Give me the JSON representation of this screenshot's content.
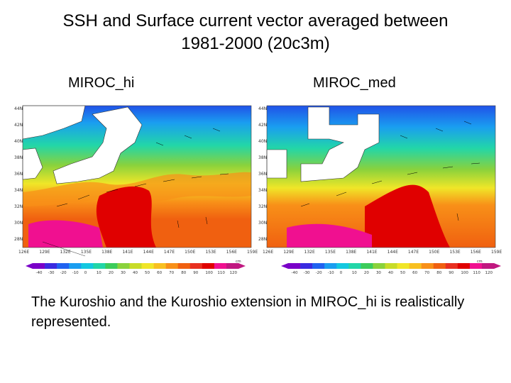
{
  "slide": {
    "title_line1": "SSH and Surface current vector averaged between",
    "title_line2": "1981-2000 (20c3m)",
    "caption": "The Kuroshio and the Kuroshio extension in MIROC_hi is realistically represented."
  },
  "panels": [
    {
      "label": "MIROC_hi",
      "lat_ticks": [
        "44N",
        "42N",
        "40N",
        "38N",
        "36N",
        "34N",
        "32N",
        "30N",
        "28N"
      ],
      "lon_ticks": [
        "126E",
        "129E",
        "132E",
        "135E",
        "138E",
        "141E",
        "144E",
        "147E",
        "150E",
        "153E",
        "156E",
        "159E"
      ],
      "colorbar": {
        "unit": "cm",
        "ticks": [
          "-40",
          "-30",
          "-20",
          "-10",
          "0",
          "10",
          "20",
          "30",
          "40",
          "50",
          "60",
          "70",
          "80",
          "90",
          "100",
          "110",
          "120"
        ]
      }
    },
    {
      "label": "MIROC_med",
      "lat_ticks": [
        "44N",
        "42N",
        "40N",
        "38N",
        "36N",
        "34N",
        "32N",
        "30N",
        "28N"
      ],
      "lon_ticks": [
        "126E",
        "129E",
        "132E",
        "135E",
        "138E",
        "141E",
        "144E",
        "147E",
        "150E",
        "153E",
        "156E",
        "159E"
      ],
      "colorbar": {
        "unit": "cm",
        "ticks": [
          "-40",
          "-30",
          "-20",
          "-10",
          "0",
          "10",
          "20",
          "30",
          "40",
          "50",
          "60",
          "70",
          "80",
          "90",
          "100",
          "110",
          "120"
        ]
      }
    }
  ],
  "colors": {
    "scale": [
      "#7a00c8",
      "#3a2be0",
      "#2062f0",
      "#1a9ef0",
      "#14c8e0",
      "#22d6a8",
      "#3ccc5a",
      "#8ad23c",
      "#c8dc28",
      "#f0e628",
      "#f8c020",
      "#f89018",
      "#f06010",
      "#e83020",
      "#e00000",
      "#f01090",
      "#c01880"
    ]
  }
}
